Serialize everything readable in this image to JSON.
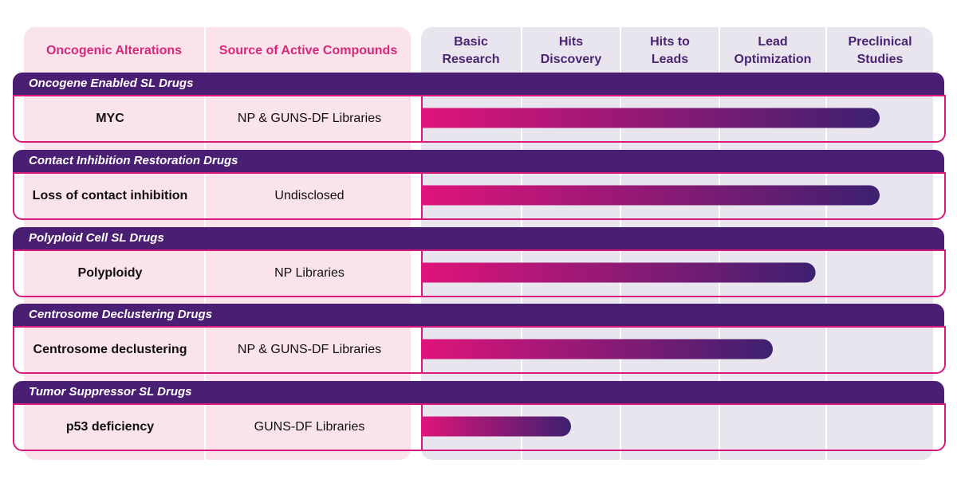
{
  "headers": {
    "alterations": "Oncogenic Alterations",
    "source": "Source of Active Compounds",
    "stages": [
      {
        "line1": "Basic",
        "line2": "Research"
      },
      {
        "line1": "Hits",
        "line2": "Discovery"
      },
      {
        "line1": "Hits to",
        "line2": "Leads"
      },
      {
        "line1": "Lead",
        "line2": "Optimization"
      },
      {
        "line1": "Preclinical",
        "line2": "Studies"
      }
    ]
  },
  "rows": [
    {
      "group": "Oncogene Enabled SL Drugs",
      "alteration": "MYC",
      "source": "NP & GUNS-DF Libraries"
    },
    {
      "group": "Contact Inhibition Restoration Drugs",
      "alteration": "Loss of contact inhibition",
      "source": "Undisclosed"
    },
    {
      "group": "Polyploid Cell SL Drugs",
      "alteration": "Polyploidy",
      "source": "NP Libraries"
    },
    {
      "group": "Centrosome Declustering Drugs",
      "alteration": "Centrosome declustering",
      "source": "NP & GUNS-DF Libraries"
    },
    {
      "group": "Tumor Suppressor SL Drugs",
      "alteration": "p53 deficiency",
      "source": "GUNS-DF Libraries"
    }
  ],
  "chart_data": {
    "type": "bar",
    "orientation": "horizontal",
    "categories": [
      "MYC",
      "Loss of contact inhibition",
      "Polyploidy",
      "Centrosome declustering",
      "p53 deficiency"
    ],
    "stages": [
      "Basic Research",
      "Hits Discovery",
      "Hits to Leads",
      "Lead Optimization",
      "Preclinical Studies"
    ],
    "values": [
      4.5,
      4.5,
      3.9,
      3.5,
      1.5
    ],
    "xlim": [
      0,
      5
    ],
    "colors": {
      "bar_start": "#e0147a",
      "bar_end": "#3d2070"
    }
  }
}
